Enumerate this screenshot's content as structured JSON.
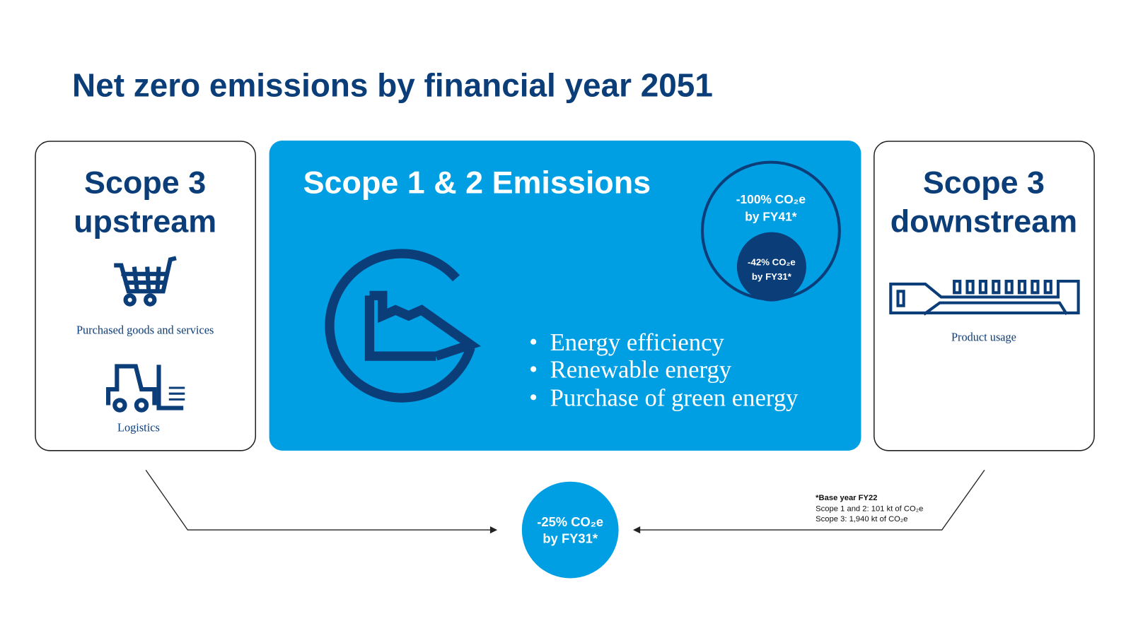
{
  "header": {
    "title": "Net zero emissions by financial year 2051"
  },
  "upstream": {
    "title": [
      "Scope 3",
      "upstream"
    ],
    "items": [
      "Purchased goods and services",
      "Logistics"
    ]
  },
  "core": {
    "title": "Scope 1 & 2 Emissions",
    "target_long": [
      "-100% CO₂e",
      "by FY41*"
    ],
    "target_short": [
      "-42% CO₂e",
      "by FY31*"
    ],
    "measures": [
      "Energy efficiency",
      "Renewable energy",
      "Purchase of green energy"
    ]
  },
  "downstream": {
    "title": [
      "Scope 3",
      "downstream"
    ],
    "items": [
      "Product usage"
    ]
  },
  "scope3_target": [
    "-25% CO₂e",
    "by FY31*"
  ],
  "footnote": [
    "*Base year FY22",
    "Scope 1 and 2: 101 kt of CO₂e",
    "Scope 3: 1,940 kt of CO₂e"
  ]
}
